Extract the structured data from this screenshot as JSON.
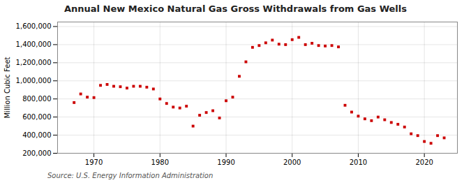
{
  "chart_data": {
    "type": "scatter",
    "title": "Annual New Mexico Natural Gas Gross Withdrawals from Gas Wells",
    "ylabel": "Million Cubic Feet",
    "annotations": [
      "Source: U.S. Energy Information Administration"
    ],
    "x": [
      1967,
      1968,
      1969,
      1970,
      1971,
      1972,
      1973,
      1974,
      1975,
      1976,
      1977,
      1978,
      1979,
      1980,
      1981,
      1982,
      1983,
      1984,
      1985,
      1986,
      1987,
      1988,
      1989,
      1990,
      1991,
      1992,
      1993,
      1994,
      1995,
      1996,
      1997,
      1998,
      1999,
      2000,
      2001,
      2002,
      2003,
      2004,
      2005,
      2006,
      2007,
      2008,
      2009,
      2010,
      2011,
      2012,
      2013,
      2014,
      2015,
      2016,
      2017,
      2018,
      2019,
      2020,
      2021,
      2022,
      2023
    ],
    "values": [
      760000,
      855000,
      820000,
      815000,
      950000,
      960000,
      940000,
      935000,
      920000,
      940000,
      940000,
      930000,
      910000,
      800000,
      750000,
      710000,
      700000,
      720000,
      500000,
      620000,
      650000,
      670000,
      590000,
      780000,
      820000,
      1050000,
      1210000,
      1370000,
      1390000,
      1420000,
      1450000,
      1405000,
      1400000,
      1455000,
      1480000,
      1400000,
      1415000,
      1390000,
      1385000,
      1390000,
      1375000,
      730000,
      655000,
      610000,
      580000,
      560000,
      600000,
      570000,
      540000,
      520000,
      490000,
      415000,
      395000,
      330000,
      310000,
      395000,
      370000
    ],
    "color": "#cc0000",
    "marker": "square",
    "xlim": [
      1964.5,
      2025
    ],
    "xticks": [
      1970,
      1980,
      1990,
      2000,
      2010,
      2020
    ],
    "ylim": [
      200000,
      1650000
    ],
    "yticks": [
      {
        "value": 200000,
        "label": "200,000"
      },
      {
        "value": 400000,
        "label": "400,000"
      },
      {
        "value": 600000,
        "label": "600,000"
      },
      {
        "value": 800000,
        "label": "800,000"
      },
      {
        "value": 1000000,
        "label": "1,000,000"
      },
      {
        "value": 1200000,
        "label": "1,200,000"
      },
      {
        "value": 1400000,
        "label": "1,400,000"
      },
      {
        "value": 1600000,
        "label": "1,600,000"
      }
    ],
    "grid": true
  }
}
